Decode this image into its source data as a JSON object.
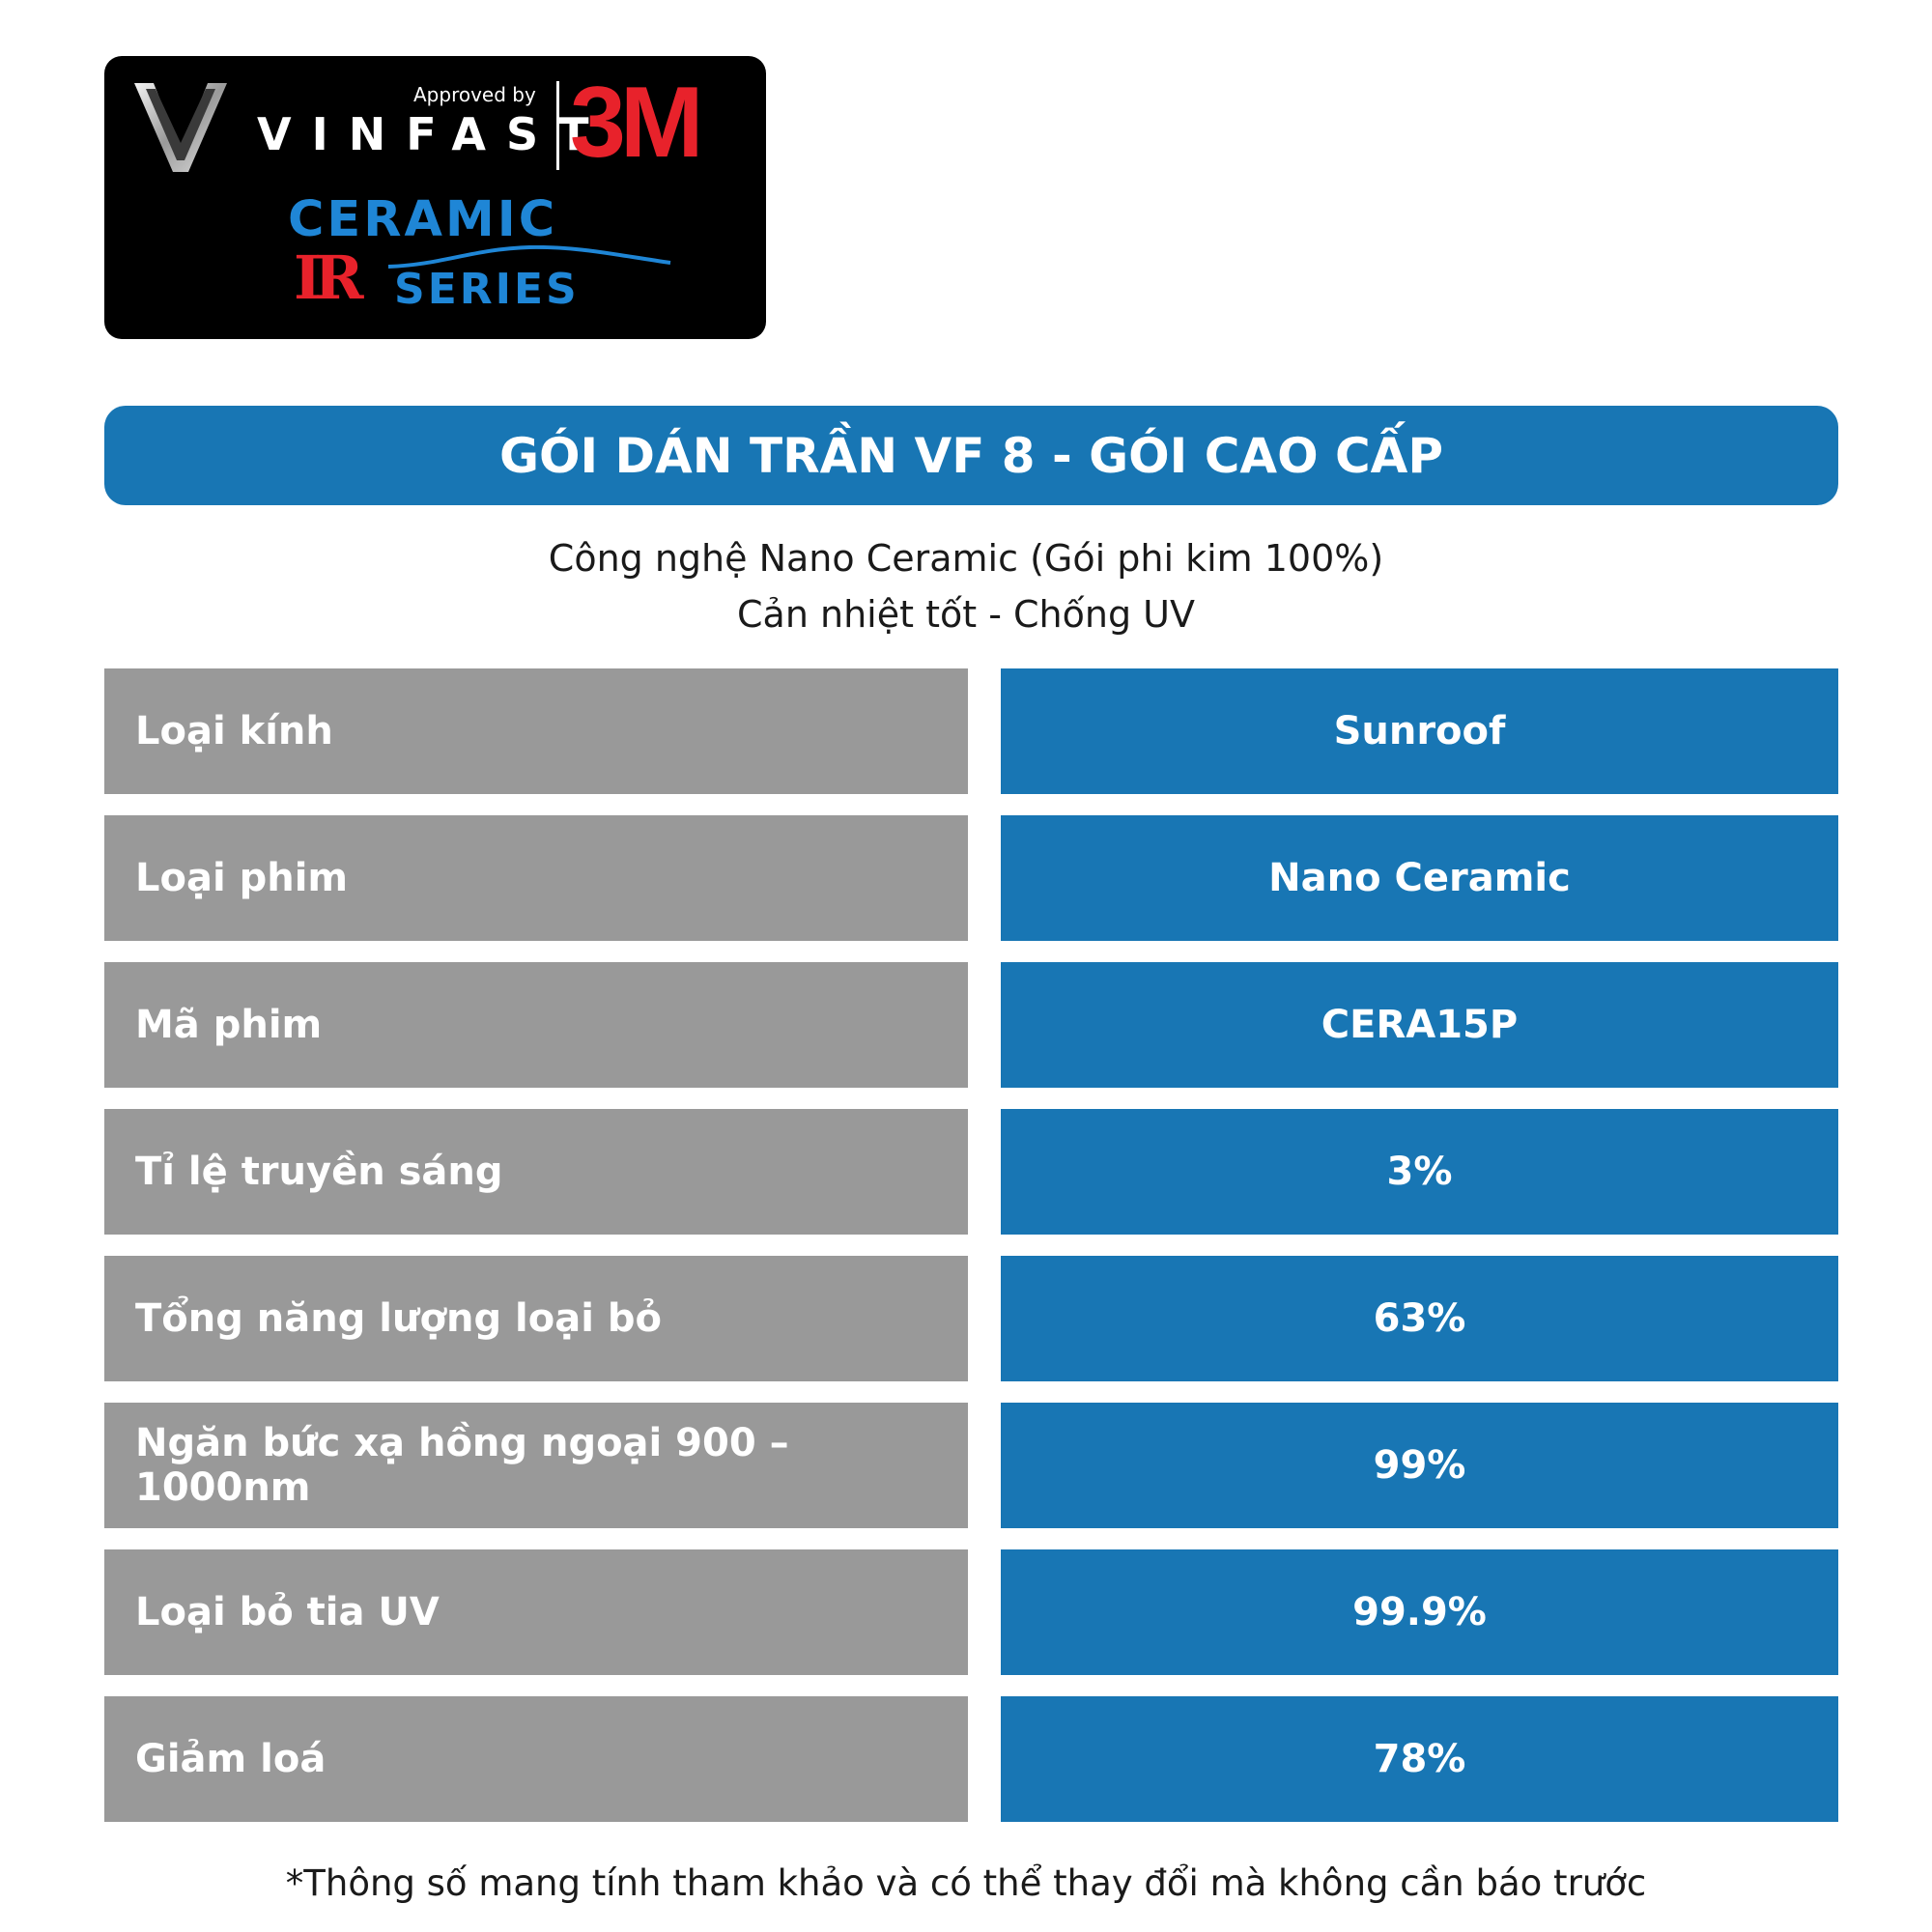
{
  "logo": {
    "approved_by": "Approved by",
    "vinfast": "VINFAST",
    "brand": "3M",
    "ceramic": "CERAMIC",
    "ir": "IR",
    "series": "SERIES",
    "colors": {
      "badge_background": "#000000",
      "red": "#e8222b",
      "blue": "#1f86d6"
    }
  },
  "title": "GÓI DÁN TRẦN VF 8 - GÓI CAO CẤP",
  "subtitle": {
    "line1": "Công nghệ Nano Ceramic (Gói phi kim 100%)",
    "line2": "Cản nhiệt tốt - Chống UV"
  },
  "specs": [
    {
      "label": "Loại kính",
      "value": "Sunroof"
    },
    {
      "label": "Loại phim",
      "value": "Nano Ceramic"
    },
    {
      "label": "Mã phim",
      "value": "CERA15P"
    },
    {
      "label": "Tỉ lệ truyền sáng",
      "value": "3%"
    },
    {
      "label": "Tổng năng lượng loại bỏ",
      "value": "63%"
    },
    {
      "label": "Ngăn bức xạ hồng ngoại 900 – 1000nm",
      "value": "99%"
    },
    {
      "label": "Loại bỏ tia UV",
      "value": "99.9%"
    },
    {
      "label": "Giảm loá",
      "value": "78%"
    }
  ],
  "footnote": "*Thông số mang tính tham khảo và có thể thay đổi mà không cần báo trước",
  "colors": {
    "primary_blue": "#1876b4",
    "label_gray": "#999999",
    "text_dark": "#1a1a1a"
  }
}
